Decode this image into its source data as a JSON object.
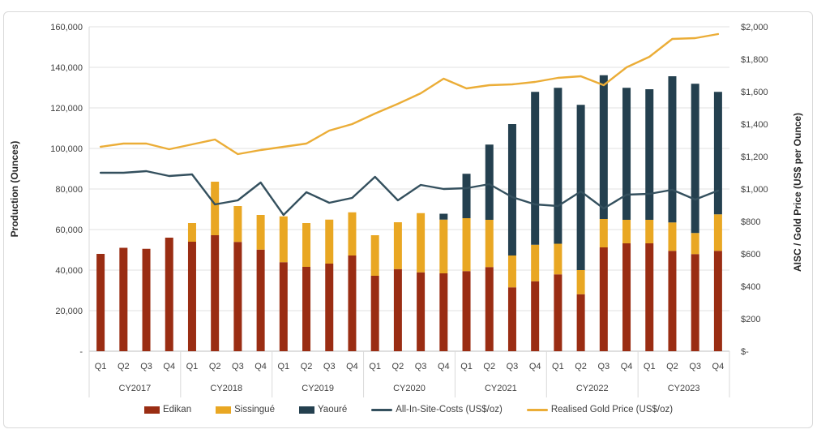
{
  "chart_data": {
    "type": "bar",
    "subtype": "stacked-bars-with-lines-combo",
    "title": "",
    "years": [
      "CY2017",
      "CY2018",
      "CY2019",
      "CY2020",
      "CY2021",
      "CY2022",
      "CY2023"
    ],
    "quarters": [
      "Q1",
      "Q2",
      "Q3",
      "Q4"
    ],
    "bar_series": [
      {
        "name": "Edikan",
        "color": "#9A2D13",
        "values": [
          48000,
          51000,
          50500,
          56000,
          54000,
          57200,
          53900,
          50100,
          43900,
          41600,
          43200,
          47200,
          37200,
          40500,
          38900,
          38400,
          39500,
          41500,
          31500,
          34500,
          37900,
          28100,
          51200,
          53200,
          53200,
          49500,
          47900,
          49500
        ]
      },
      {
        "name": "Sissingué",
        "color": "#E9A723",
        "values": [
          0,
          0,
          0,
          0,
          9200,
          26400,
          17700,
          17100,
          22600,
          21600,
          21700,
          21300,
          20000,
          23100,
          29200,
          26500,
          26100,
          23300,
          15700,
          18000,
          15100,
          11900,
          14000,
          11600,
          11600,
          14000,
          10400,
          18000
        ]
      },
      {
        "name": "Yaouré",
        "color": "#24404F",
        "values": [
          0,
          0,
          0,
          0,
          0,
          0,
          0,
          0,
          0,
          0,
          0,
          0,
          0,
          0,
          0,
          2900,
          21900,
          37100,
          64800,
          75400,
          76900,
          81500,
          70900,
          65100,
          64400,
          72100,
          73600,
          60400
        ]
      }
    ],
    "line_series": [
      {
        "name": "All-In-Site-Costs (US$/oz)",
        "color": "#34505E",
        "axis": "right",
        "values": [
          1100,
          1100,
          1110,
          1080,
          1090,
          905,
          930,
          1040,
          840,
          980,
          915,
          945,
          1075,
          930,
          1025,
          1000,
          1005,
          1030,
          950,
          905,
          895,
          985,
          880,
          965,
          970,
          995,
          935,
          990
        ]
      },
      {
        "name": "Realised Gold Price (US$/oz)",
        "color": "#EBAD37",
        "axis": "right",
        "values": [
          1260,
          1280,
          1280,
          1245,
          1275,
          1305,
          1215,
          1240,
          1260,
          1280,
          1360,
          1400,
          1465,
          1525,
          1590,
          1680,
          1620,
          1640,
          1645,
          1660,
          1685,
          1695,
          1640,
          1750,
          1815,
          1925,
          1930,
          1955
        ]
      }
    ],
    "left_axis": {
      "label": "Production (Ounces)",
      "min": 0,
      "max": 160000,
      "tick_step": 20000,
      "tick_labels": [
        "160,000",
        "140,000",
        "120,000",
        "100,000",
        "80,000",
        "60,000",
        "40,000",
        "20,000",
        "-"
      ]
    },
    "right_axis": {
      "label": "AISC / Gold Price (US$ per Ounce)",
      "min": 0,
      "max": 2000,
      "tick_step": 200,
      "tick_labels": [
        "$2,000",
        "$1,800",
        "$1,600",
        "$1,400",
        "$1,200",
        "$1,000",
        "$800",
        "$600",
        "$400",
        "$200",
        "$-"
      ]
    },
    "grid": "horizontal",
    "legend_position": "bottom"
  },
  "style_colors": {
    "gridline": "#E2E2E2",
    "axis_line": "#BFBFBF",
    "separator": "#D9D9D9",
    "tick_text": "#3F3F3F",
    "category_text": "#404040"
  }
}
